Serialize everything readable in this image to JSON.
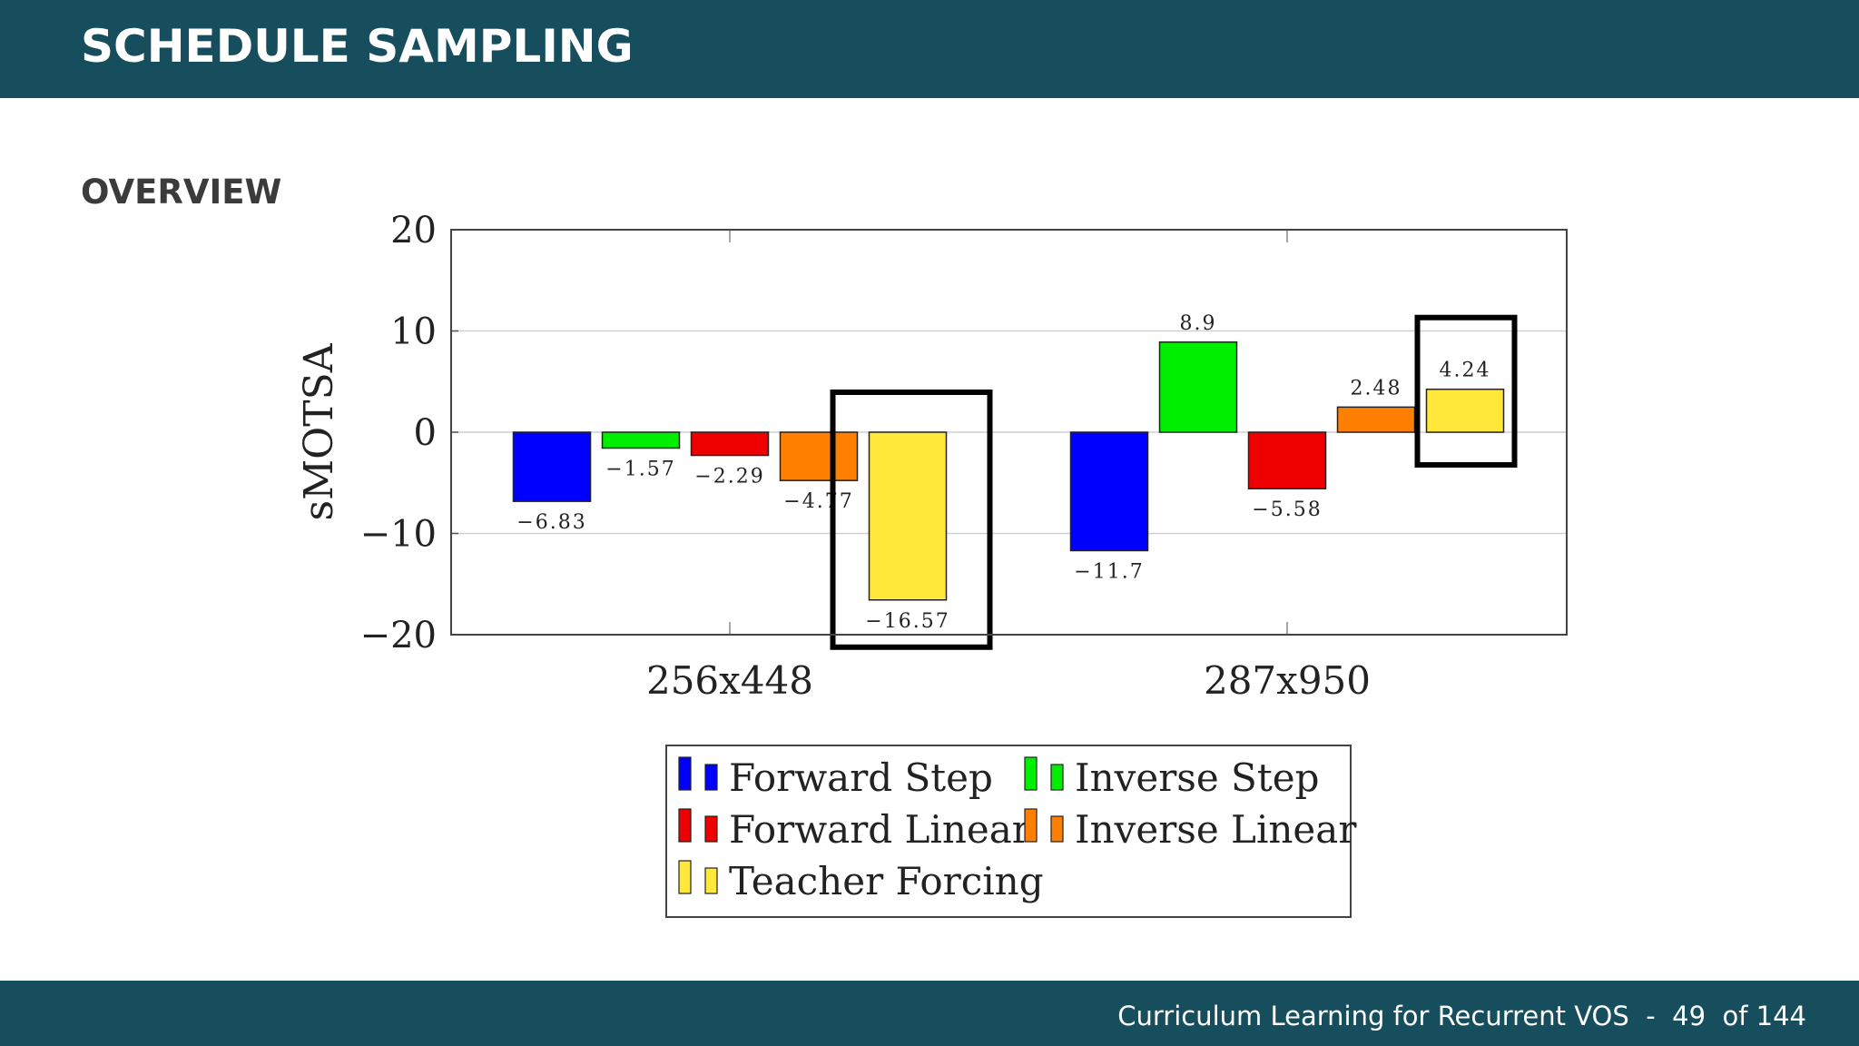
{
  "header": {
    "title": "SCHEDULE SAMPLING"
  },
  "section": {
    "title": "OVERVIEW"
  },
  "footer": {
    "presentation": "Curriculum Learning for Recurrent VOS",
    "separator": "-",
    "page": "49",
    "of_total": "of 144"
  },
  "colors": {
    "header_bg": "#174e5e",
    "highlight_box": "#000000"
  },
  "chart_data": {
    "type": "bar",
    "title": "",
    "xlabel": "",
    "ylabel": "sMOTSA",
    "ylim": [
      -20,
      20
    ],
    "yticks": [
      "20",
      "10",
      "0",
      "−10",
      "−20"
    ],
    "ytick_values": [
      20,
      10,
      0,
      -10,
      -20
    ],
    "grid": true,
    "legend_position": "bottom-center",
    "categories": [
      "256x448",
      "287x950"
    ],
    "series": [
      {
        "name": "Forward Step",
        "color": "#0000ff",
        "values": [
          -6.83,
          -11.7
        ],
        "labels": [
          "−6.83",
          "−11.7"
        ]
      },
      {
        "name": "Inverse Step",
        "color": "#00ee00",
        "values": [
          -1.57,
          8.9
        ],
        "labels": [
          "−1.57",
          "8.9"
        ]
      },
      {
        "name": "Forward Linear",
        "color": "#ee0000",
        "values": [
          -2.29,
          -5.58
        ],
        "labels": [
          "−2.29",
          "−5.58"
        ]
      },
      {
        "name": "Inverse Linear",
        "color": "#ff7f00",
        "values": [
          -4.77,
          2.48
        ],
        "labels": [
          "−4.77",
          "2.48"
        ]
      },
      {
        "name": "Teacher Forcing",
        "color": "#ffe83a",
        "values": [
          -16.57,
          4.24
        ],
        "labels": [
          "−16.57",
          "4.24"
        ]
      }
    ],
    "highlighted": [
      {
        "series": "Teacher Forcing",
        "category": "256x448"
      },
      {
        "series": "Teacher Forcing",
        "category": "287x950"
      }
    ]
  }
}
